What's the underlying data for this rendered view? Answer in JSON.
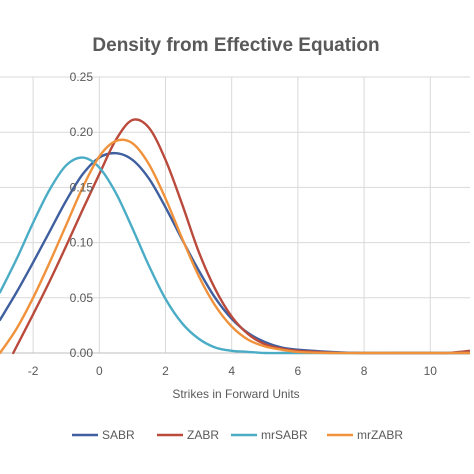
{
  "chart_data": {
    "type": "line",
    "title": "Density from Effective Equation",
    "xlabel": "Strikes in Forward Units",
    "ylabel": "",
    "xlim": [
      -3,
      11.2
    ],
    "ylim": [
      0,
      0.25
    ],
    "x_ticks": [
      "-2",
      "0",
      "2",
      "4",
      "6",
      "8",
      "10"
    ],
    "y_ticks": [
      "0.00",
      "0.05",
      "0.10",
      "0.15",
      "0.20",
      "0.25"
    ],
    "grid": true,
    "legend_position": "bottom",
    "series": [
      {
        "name": "SABR",
        "color": "#3f5f9f",
        "x": [
          -3,
          -2.5,
          -2,
          -1.5,
          -1,
          -0.5,
          0,
          0.5,
          1,
          1.5,
          2,
          2.5,
          3,
          3.5,
          4,
          4.5,
          5,
          5.5,
          6,
          7,
          8,
          9,
          10,
          11.2
        ],
        "y": [
          0.03,
          0.055,
          0.082,
          0.11,
          0.138,
          0.162,
          0.177,
          0.181,
          0.175,
          0.158,
          0.132,
          0.103,
          0.075,
          0.05,
          0.031,
          0.018,
          0.01,
          0.005,
          0.003,
          0.001,
          0.0,
          0.0,
          0.0,
          0.0
        ]
      },
      {
        "name": "ZABR",
        "color": "#b94a3c",
        "x": [
          -2.6,
          -2,
          -1.5,
          -1,
          -0.5,
          0,
          0.5,
          1,
          1.5,
          2,
          2.5,
          3,
          3.5,
          4,
          4.5,
          5,
          5.5,
          6,
          7,
          8,
          9,
          10,
          10.5,
          11.2
        ],
        "y": [
          0.0,
          0.035,
          0.065,
          0.097,
          0.13,
          0.162,
          0.193,
          0.211,
          0.204,
          0.175,
          0.135,
          0.092,
          0.058,
          0.033,
          0.017,
          0.008,
          0.004,
          0.002,
          0.0005,
          0.0,
          0.0,
          0.0,
          0.0,
          0.002
        ]
      },
      {
        "name": "mrSABR",
        "color": "#4bacc6",
        "x": [
          -3,
          -2.5,
          -2,
          -1.5,
          -1,
          -0.5,
          0,
          0.5,
          1,
          1.5,
          2,
          2.5,
          3,
          3.5,
          4,
          4.5,
          5,
          5.5,
          6,
          7,
          8,
          10,
          11.2
        ],
        "y": [
          0.055,
          0.085,
          0.118,
          0.148,
          0.17,
          0.177,
          0.168,
          0.145,
          0.113,
          0.079,
          0.049,
          0.027,
          0.013,
          0.005,
          0.002,
          0.001,
          0.0,
          0.0,
          0.0,
          0.0,
          0.0,
          0.0,
          0.0
        ]
      },
      {
        "name": "mrZABR",
        "color": "#f0923c",
        "x": [
          -3,
          -2.5,
          -2,
          -1.5,
          -1,
          -0.5,
          0,
          0.5,
          1,
          1.5,
          2,
          2.5,
          3,
          3.5,
          4,
          4.5,
          5,
          5.5,
          6,
          7,
          8,
          9,
          10,
          11.2
        ],
        "y": [
          0.0,
          0.022,
          0.05,
          0.082,
          0.116,
          0.15,
          0.178,
          0.192,
          0.19,
          0.171,
          0.14,
          0.104,
          0.07,
          0.043,
          0.024,
          0.012,
          0.006,
          0.003,
          0.001,
          0.0,
          0.0,
          0.0,
          0.0,
          0.0
        ]
      }
    ]
  }
}
